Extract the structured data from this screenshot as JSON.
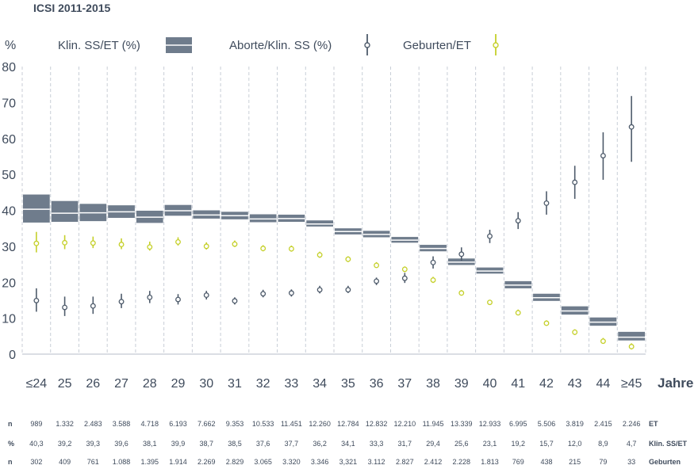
{
  "chart_data": {
    "type": "box-errorbar",
    "title": "ICSI 2011-2015",
    "ylabel": "%",
    "xlabel": "Jahre",
    "ylim": [
      0,
      80
    ],
    "yticks": [
      0,
      10,
      20,
      30,
      40,
      50,
      60,
      70,
      80
    ],
    "grid_vertical": "dashed",
    "legend_placement": "top",
    "colors": {
      "box": "#6f7c8c",
      "aborte": "#4e5b6b",
      "geburten": "#c5d02a",
      "grid": "#c8ced6"
    },
    "legend": [
      {
        "label": "Klin. SS/ET (%)",
        "icon": "box-icon"
      },
      {
        "label": "Aborte/Klin. SS (%)",
        "icon": "circle-errorbar-icon"
      },
      {
        "label": "Geburten/ET",
        "icon": "yellow-errorbar-icon"
      }
    ],
    "categories": [
      "≤24",
      "25",
      "26",
      "27",
      "28",
      "29",
      "30",
      "31",
      "32",
      "33",
      "34",
      "35",
      "36",
      "37",
      "38",
      "39",
      "40",
      "41",
      "42",
      "43",
      "44",
      "≥45"
    ],
    "series": [
      {
        "name": "Klin. SS/ET (%)",
        "values": [
          40.3,
          39.2,
          39.3,
          39.6,
          38.1,
          39.9,
          38.7,
          38.5,
          37.6,
          37.7,
          36.2,
          34.1,
          33.3,
          31.7,
          29.4,
          25.6,
          23.1,
          19.2,
          15.7,
          12.0,
          8.9,
          4.7
        ],
        "low": [
          36.6,
          36.8,
          37.0,
          37.9,
          36.5,
          38.5,
          37.7,
          37.5,
          36.7,
          36.8,
          35.5,
          33.3,
          32.5,
          31.0,
          28.6,
          24.8,
          22.4,
          18.3,
          14.8,
          11.0,
          7.9,
          3.8
        ],
        "high": [
          44.4,
          42.6,
          41.8,
          41.4,
          39.9,
          41.5,
          40.0,
          39.6,
          38.9,
          38.8,
          37.2,
          35.0,
          34.3,
          32.6,
          30.4,
          26.6,
          24.1,
          20.3,
          16.8,
          13.3,
          10.2,
          6.2
        ]
      },
      {
        "name": "Aborte/Klin. SS (%)",
        "values": [
          14.9,
          13.0,
          13.4,
          14.6,
          15.8,
          15.2,
          16.4,
          14.8,
          16.8,
          17.0,
          17.9,
          17.9,
          20.3,
          21.1,
          25.5,
          27.8,
          32.8,
          37.1,
          42.0,
          47.8,
          55.2,
          63.2
        ],
        "low": [
          11.8,
          10.6,
          11.2,
          12.8,
          14.2,
          13.8,
          15.2,
          13.8,
          15.8,
          16.0,
          16.9,
          17.0,
          19.2,
          19.8,
          23.8,
          26.0,
          30.9,
          34.8,
          38.8,
          43.2,
          48.5,
          53.5
        ],
        "high": [
          18.3,
          16.0,
          16.0,
          16.8,
          17.6,
          16.7,
          17.6,
          15.8,
          17.9,
          18.0,
          19.0,
          19.0,
          21.3,
          22.6,
          27.2,
          29.7,
          34.6,
          39.5,
          45.3,
          52.4,
          61.7,
          71.8
        ]
      },
      {
        "name": "Geburten/ET",
        "values": [
          30.8,
          31.0,
          30.9,
          30.5,
          29.8,
          31.2,
          30.0,
          30.6,
          29.4,
          29.3,
          27.6,
          26.4,
          24.7,
          23.6,
          20.6,
          17.0,
          14.4,
          11.5,
          8.6,
          6.1,
          3.6,
          2.1
        ],
        "low": [
          28.3,
          29.2,
          29.5,
          29.2,
          28.8,
          30.2,
          29.1,
          29.8,
          28.6,
          28.5,
          26.8,
          25.6,
          24.0,
          22.8,
          19.8,
          16.3,
          13.7,
          10.8,
          7.9,
          5.3,
          2.9,
          1.3
        ],
        "high": [
          34.0,
          33.1,
          32.7,
          32.2,
          31.3,
          32.5,
          31.1,
          31.6,
          30.3,
          30.2,
          28.5,
          27.2,
          25.6,
          24.4,
          21.5,
          17.8,
          15.1,
          12.4,
          9.4,
          6.9,
          4.5,
          3.0
        ]
      }
    ],
    "table": {
      "rows": [
        {
          "label": "n",
          "suffix": "ET",
          "values": [
            "989",
            "1.332",
            "2.483",
            "3.588",
            "4.718",
            "6.193",
            "7.662",
            "9.353",
            "10.533",
            "11.451",
            "12.260",
            "12.784",
            "12.832",
            "12.210",
            "11.945",
            "13.339",
            "12.933",
            "6.995",
            "5.506",
            "3.819",
            "2.415",
            "2.246"
          ]
        },
        {
          "label": "%",
          "suffix": "Klin. SS/ET",
          "values": [
            "40,3",
            "39,2",
            "39,3",
            "39,6",
            "38,1",
            "39,9",
            "38,7",
            "38,5",
            "37,6",
            "37,7",
            "36,2",
            "34,1",
            "33,3",
            "31,7",
            "29,4",
            "25,6",
            "23,1",
            "19,2",
            "15,7",
            "12,0",
            "8,9",
            "4,7"
          ]
        },
        {
          "label": "n",
          "suffix": "Geburten",
          "values": [
            "302",
            "409",
            "761",
            "1.088",
            "1.395",
            "1.914",
            "2.269",
            "2.829",
            "3.065",
            "3.320",
            "3.346",
            "3,321",
            "3.112",
            "2.827",
            "2.412",
            "2.228",
            "1.813",
            "769",
            "438",
            "215",
            "79",
            "33"
          ]
        }
      ]
    }
  }
}
